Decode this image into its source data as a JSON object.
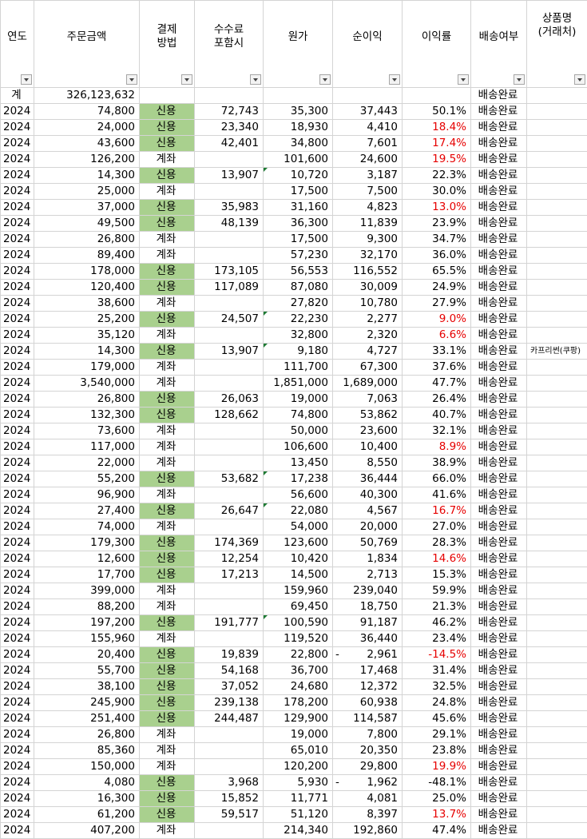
{
  "headers": {
    "year": "연도",
    "amount": "주문금액",
    "payment_l1": "결제",
    "payment_l2": "방법",
    "fee_l1": "수수료",
    "fee_l2": "포함시",
    "cost": "원가",
    "profit": "순이익",
    "margin": "이익률",
    "delivery": "배송여부",
    "product_l1": "상품명",
    "product_l2": "(거래처)"
  },
  "total": {
    "label": "계",
    "amount": "326,123,632",
    "delivery": "배송완료"
  },
  "rows": [
    {
      "year": "2024",
      "amount": "74,800",
      "payment": "신용",
      "fee": "72,743",
      "cost": "35,300",
      "profit": "37,443",
      "margin": "50.1%",
      "delivery": "배송완료",
      "product": "",
      "credit": true,
      "neg": false
    },
    {
      "year": "2024",
      "amount": "24,000",
      "payment": "신용",
      "fee": "23,340",
      "cost": "18,930",
      "profit": "4,410",
      "margin": "18.4%",
      "delivery": "배송완료",
      "product": "",
      "credit": true,
      "neg": true
    },
    {
      "year": "2024",
      "amount": "43,600",
      "payment": "신용",
      "fee": "42,401",
      "cost": "34,800",
      "profit": "7,601",
      "margin": "17.4%",
      "delivery": "배송완료",
      "product": "",
      "credit": true,
      "neg": true
    },
    {
      "year": "2024",
      "amount": "126,200",
      "payment": "계좌",
      "fee": "",
      "cost": "101,600",
      "profit": "24,600",
      "margin": "19.5%",
      "delivery": "배송완료",
      "product": "",
      "credit": false,
      "neg": true
    },
    {
      "year": "2024",
      "amount": "14,300",
      "payment": "신용",
      "fee": "13,907",
      "cost": "10,720",
      "profit": "3,187",
      "margin": "22.3%",
      "delivery": "배송완료",
      "product": "",
      "credit": true,
      "neg": false,
      "tri": true
    },
    {
      "year": "2024",
      "amount": "25,000",
      "payment": "계좌",
      "fee": "",
      "cost": "17,500",
      "profit": "7,500",
      "margin": "30.0%",
      "delivery": "배송완료",
      "product": "",
      "credit": false,
      "neg": false
    },
    {
      "year": "2024",
      "amount": "37,000",
      "payment": "신용",
      "fee": "35,983",
      "cost": "31,160",
      "profit": "4,823",
      "margin": "13.0%",
      "delivery": "배송완료",
      "product": "",
      "credit": true,
      "neg": true
    },
    {
      "year": "2024",
      "amount": "49,500",
      "payment": "신용",
      "fee": "48,139",
      "cost": "36,300",
      "profit": "11,839",
      "margin": "23.9%",
      "delivery": "배송완료",
      "product": "",
      "credit": true,
      "neg": false
    },
    {
      "year": "2024",
      "amount": "26,800",
      "payment": "계좌",
      "fee": "",
      "cost": "17,500",
      "profit": "9,300",
      "margin": "34.7%",
      "delivery": "배송완료",
      "product": "",
      "credit": false,
      "neg": false
    },
    {
      "year": "2024",
      "amount": "89,400",
      "payment": "계좌",
      "fee": "",
      "cost": "57,230",
      "profit": "32,170",
      "margin": "36.0%",
      "delivery": "배송완료",
      "product": "",
      "credit": false,
      "neg": false
    },
    {
      "year": "2024",
      "amount": "178,000",
      "payment": "신용",
      "fee": "173,105",
      "cost": "56,553",
      "profit": "116,552",
      "margin": "65.5%",
      "delivery": "배송완료",
      "product": "",
      "credit": true,
      "neg": false
    },
    {
      "year": "2024",
      "amount": "120,400",
      "payment": "신용",
      "fee": "117,089",
      "cost": "87,080",
      "profit": "30,009",
      "margin": "24.9%",
      "delivery": "배송완료",
      "product": "",
      "credit": true,
      "neg": false
    },
    {
      "year": "2024",
      "amount": "38,600",
      "payment": "계좌",
      "fee": "",
      "cost": "27,820",
      "profit": "10,780",
      "margin": "27.9%",
      "delivery": "배송완료",
      "product": "",
      "credit": false,
      "neg": false
    },
    {
      "year": "2024",
      "amount": "25,200",
      "payment": "신용",
      "fee": "24,507",
      "cost": "22,230",
      "profit": "2,277",
      "margin": "9.0%",
      "delivery": "배송완료",
      "product": "",
      "credit": true,
      "neg": true,
      "tri": true
    },
    {
      "year": "2024",
      "amount": "35,120",
      "payment": "계좌",
      "fee": "",
      "cost": "32,800",
      "profit": "2,320",
      "margin": "6.6%",
      "delivery": "배송완료",
      "product": "",
      "credit": false,
      "neg": true
    },
    {
      "year": "2024",
      "amount": "14,300",
      "payment": "신용",
      "fee": "13,907",
      "cost": "9,180",
      "profit": "4,727",
      "margin": "33.1%",
      "delivery": "배송완료",
      "product": "카프리썬(쿠팡)",
      "credit": true,
      "neg": false,
      "tri": true
    },
    {
      "year": "2024",
      "amount": "179,000",
      "payment": "계좌",
      "fee": "",
      "cost": "111,700",
      "profit": "67,300",
      "margin": "37.6%",
      "delivery": "배송완료",
      "product": "",
      "credit": false,
      "neg": false
    },
    {
      "year": "2024",
      "amount": "3,540,000",
      "payment": "계좌",
      "fee": "",
      "cost": "1,851,000",
      "profit": "1,689,000",
      "margin": "47.7%",
      "delivery": "배송완료",
      "product": "",
      "credit": false,
      "neg": false
    },
    {
      "year": "2024",
      "amount": "26,800",
      "payment": "신용",
      "fee": "26,063",
      "cost": "19,000",
      "profit": "7,063",
      "margin": "26.4%",
      "delivery": "배송완료",
      "product": "",
      "credit": true,
      "neg": false
    },
    {
      "year": "2024",
      "amount": "132,300",
      "payment": "신용",
      "fee": "128,662",
      "cost": "74,800",
      "profit": "53,862",
      "margin": "40.7%",
      "delivery": "배송완료",
      "product": "",
      "credit": true,
      "neg": false
    },
    {
      "year": "2024",
      "amount": "73,600",
      "payment": "계좌",
      "fee": "",
      "cost": "50,000",
      "profit": "23,600",
      "margin": "32.1%",
      "delivery": "배송완료",
      "product": "",
      "credit": false,
      "neg": false
    },
    {
      "year": "2024",
      "amount": "117,000",
      "payment": "계좌",
      "fee": "",
      "cost": "106,600",
      "profit": "10,400",
      "margin": "8.9%",
      "delivery": "배송완료",
      "product": "",
      "credit": false,
      "neg": true
    },
    {
      "year": "2024",
      "amount": "22,000",
      "payment": "계좌",
      "fee": "",
      "cost": "13,450",
      "profit": "8,550",
      "margin": "38.9%",
      "delivery": "배송완료",
      "product": "",
      "credit": false,
      "neg": false
    },
    {
      "year": "2024",
      "amount": "55,200",
      "payment": "신용",
      "fee": "53,682",
      "cost": "17,238",
      "profit": "36,444",
      "margin": "66.0%",
      "delivery": "배송완료",
      "product": "",
      "credit": true,
      "neg": false,
      "tri": true
    },
    {
      "year": "2024",
      "amount": "96,900",
      "payment": "계좌",
      "fee": "",
      "cost": "56,600",
      "profit": "40,300",
      "margin": "41.6%",
      "delivery": "배송완료",
      "product": "",
      "credit": false,
      "neg": false
    },
    {
      "year": "2024",
      "amount": "27,400",
      "payment": "신용",
      "fee": "26,647",
      "cost": "22,080",
      "profit": "4,567",
      "margin": "16.7%",
      "delivery": "배송완료",
      "product": "",
      "credit": true,
      "neg": true,
      "tri": true
    },
    {
      "year": "2024",
      "amount": "74,000",
      "payment": "계좌",
      "fee": "",
      "cost": "54,000",
      "profit": "20,000",
      "margin": "27.0%",
      "delivery": "배송완료",
      "product": "",
      "credit": false,
      "neg": false
    },
    {
      "year": "2024",
      "amount": "179,300",
      "payment": "신용",
      "fee": "174,369",
      "cost": "123,600",
      "profit": "50,769",
      "margin": "28.3%",
      "delivery": "배송완료",
      "product": "",
      "credit": true,
      "neg": false
    },
    {
      "year": "2024",
      "amount": "12,600",
      "payment": "신용",
      "fee": "12,254",
      "cost": "10,420",
      "profit": "1,834",
      "margin": "14.6%",
      "delivery": "배송완료",
      "product": "",
      "credit": true,
      "neg": true
    },
    {
      "year": "2024",
      "amount": "17,700",
      "payment": "신용",
      "fee": "17,213",
      "cost": "14,500",
      "profit": "2,713",
      "margin": "15.3%",
      "delivery": "배송완료",
      "product": "",
      "credit": true,
      "neg": false
    },
    {
      "year": "2024",
      "amount": "399,000",
      "payment": "계좌",
      "fee": "",
      "cost": "159,960",
      "profit": "239,040",
      "margin": "59.9%",
      "delivery": "배송완료",
      "product": "",
      "credit": false,
      "neg": false
    },
    {
      "year": "2024",
      "amount": "88,200",
      "payment": "계좌",
      "fee": "",
      "cost": "69,450",
      "profit": "18,750",
      "margin": "21.3%",
      "delivery": "배송완료",
      "product": "",
      "credit": false,
      "neg": false
    },
    {
      "year": "2024",
      "amount": "197,200",
      "payment": "신용",
      "fee": "191,777",
      "cost": "100,590",
      "profit": "91,187",
      "margin": "46.2%",
      "delivery": "배송완료",
      "product": "",
      "credit": true,
      "neg": false,
      "tri": true
    },
    {
      "year": "2024",
      "amount": "155,960",
      "payment": "계좌",
      "fee": "",
      "cost": "119,520",
      "profit": "36,440",
      "margin": "23.4%",
      "delivery": "배송완료",
      "product": "",
      "credit": false,
      "neg": false
    },
    {
      "year": "2024",
      "amount": "20,400",
      "payment": "신용",
      "fee": "19,839",
      "cost": "22,800",
      "profit": "2,961",
      "margin": "-14.5%",
      "delivery": "배송완료",
      "product": "",
      "credit": true,
      "neg": true,
      "dash": "-"
    },
    {
      "year": "2024",
      "amount": "55,700",
      "payment": "신용",
      "fee": "54,168",
      "cost": "36,700",
      "profit": "17,468",
      "margin": "31.4%",
      "delivery": "배송완료",
      "product": "",
      "credit": true,
      "neg": false
    },
    {
      "year": "2024",
      "amount": "38,100",
      "payment": "신용",
      "fee": "37,052",
      "cost": "24,680",
      "profit": "12,372",
      "margin": "32.5%",
      "delivery": "배송완료",
      "product": "",
      "credit": true,
      "neg": false
    },
    {
      "year": "2024",
      "amount": "245,900",
      "payment": "신용",
      "fee": "239,138",
      "cost": "178,200",
      "profit": "60,938",
      "margin": "24.8%",
      "delivery": "배송완료",
      "product": "",
      "credit": true,
      "neg": false
    },
    {
      "year": "2024",
      "amount": "251,400",
      "payment": "신용",
      "fee": "244,487",
      "cost": "129,900",
      "profit": "114,587",
      "margin": "45.6%",
      "delivery": "배송완료",
      "product": "",
      "credit": true,
      "neg": false
    },
    {
      "year": "2024",
      "amount": "26,800",
      "payment": "계좌",
      "fee": "",
      "cost": "19,000",
      "profit": "7,800",
      "margin": "29.1%",
      "delivery": "배송완료",
      "product": "",
      "credit": false,
      "neg": false
    },
    {
      "year": "2024",
      "amount": "85,360",
      "payment": "계좌",
      "fee": "",
      "cost": "65,010",
      "profit": "20,350",
      "margin": "23.8%",
      "delivery": "배송완료",
      "product": "",
      "credit": false,
      "neg": false
    },
    {
      "year": "2024",
      "amount": "150,000",
      "payment": "계좌",
      "fee": "",
      "cost": "120,200",
      "profit": "29,800",
      "margin": "19.9%",
      "delivery": "배송완료",
      "product": "",
      "credit": false,
      "neg": true
    },
    {
      "year": "2024",
      "amount": "4,080",
      "payment": "신용",
      "fee": "3,968",
      "cost": "5,930",
      "profit": "1,962",
      "margin": "-48.1%",
      "delivery": "배송완료",
      "product": "",
      "credit": true,
      "neg": false,
      "dash": "-"
    },
    {
      "year": "2024",
      "amount": "16,300",
      "payment": "신용",
      "fee": "15,852",
      "cost": "11,771",
      "profit": "4,081",
      "margin": "25.0%",
      "delivery": "배송완료",
      "product": "",
      "credit": true,
      "neg": false
    },
    {
      "year": "2024",
      "amount": "61,200",
      "payment": "신용",
      "fee": "59,517",
      "cost": "51,120",
      "profit": "8,397",
      "margin": "13.7%",
      "delivery": "배송완료",
      "product": "",
      "credit": true,
      "neg": true
    },
    {
      "year": "2024",
      "amount": "407,200",
      "payment": "계좌",
      "fee": "",
      "cost": "214,340",
      "profit": "192,860",
      "margin": "47.4%",
      "delivery": "배송완료",
      "product": "",
      "credit": false,
      "neg": false
    }
  ]
}
